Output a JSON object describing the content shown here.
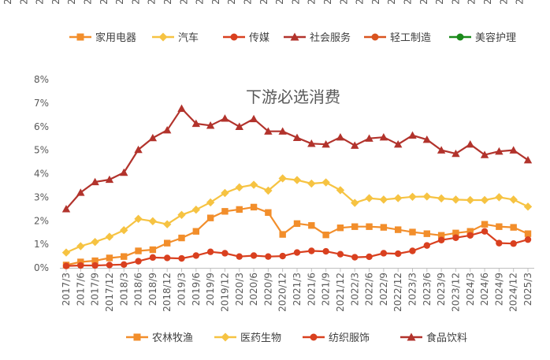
{
  "chart_data": {
    "type": "line",
    "title": "下游必选消费",
    "ylim": [
      0,
      8
    ],
    "y_ticks": [
      "0%",
      "1%",
      "2%",
      "3%",
      "4%",
      "5%",
      "6%",
      "7%",
      "8%"
    ],
    "grid": false,
    "top_legend": [
      {
        "name": "家用电器",
        "color": "#f28e2b",
        "marker": "square"
      },
      {
        "name": "汽车",
        "color": "#f6c342",
        "marker": "diamond"
      },
      {
        "name": "传媒",
        "color": "#d9401f",
        "marker": "circle"
      },
      {
        "name": "社会服务",
        "color": "#b2332c",
        "marker": "triangle"
      },
      {
        "name": "轻工制造",
        "color": "#d9541f",
        "marker": "circle"
      },
      {
        "name": "美容护理",
        "color": "#1a8a1a",
        "marker": "circle"
      }
    ],
    "top_axis_tick_fragments": [
      "2",
      "2",
      "2",
      "2",
      "2",
      "2",
      "2",
      "2",
      "2",
      "2",
      "2",
      "2",
      "2",
      "2",
      "2",
      "2",
      "2",
      "2",
      "2",
      "2",
      "2",
      "2",
      "2",
      "2",
      "2",
      "2",
      "2",
      "2",
      "2",
      "2",
      "2",
      "2",
      "2"
    ],
    "categories": [
      "2017/3",
      "2017/6",
      "2017/9",
      "2017/12",
      "2018/3",
      "2018/6",
      "2018/9",
      "2018/12",
      "2019/3",
      "2019/6",
      "2019/9",
      "2019/12",
      "2020/3",
      "2020/6",
      "2020/9",
      "2020/12",
      "2021/3",
      "2021/6",
      "2021/9",
      "2021/12",
      "2022/3",
      "2022/6",
      "2022/9",
      "2022/12",
      "2023/3",
      "2023/6",
      "2023/9",
      "2023/12",
      "2024/3",
      "2024/6",
      "2024/9",
      "2024/12",
      "2025/3"
    ],
    "series": [
      {
        "name": "农林牧渔",
        "color": "#f28e2b",
        "marker": "square",
        "values": [
          0.12,
          0.25,
          0.3,
          0.42,
          0.48,
          0.72,
          0.77,
          1.05,
          1.27,
          1.55,
          2.12,
          2.4,
          2.48,
          2.58,
          2.35,
          1.42,
          1.88,
          1.8,
          1.4,
          1.7,
          1.75,
          1.75,
          1.72,
          1.62,
          1.52,
          1.45,
          1.38,
          1.48,
          1.55,
          1.85,
          1.75,
          1.72,
          1.45
        ]
      },
      {
        "name": "医药生物",
        "color": "#f6c342",
        "marker": "diamond",
        "values": [
          0.65,
          0.92,
          1.1,
          1.32,
          1.6,
          2.08,
          1.98,
          1.85,
          2.25,
          2.47,
          2.78,
          3.18,
          3.42,
          3.53,
          3.28,
          3.8,
          3.73,
          3.58,
          3.63,
          3.3,
          2.76,
          2.96,
          2.9,
          2.96,
          3.02,
          3.03,
          2.95,
          2.9,
          2.88,
          2.88,
          3.0,
          2.9,
          2.6
        ]
      },
      {
        "name": "纺织服饰",
        "color": "#d9401f",
        "marker": "circle",
        "values": [
          0.08,
          0.1,
          0.1,
          0.12,
          0.14,
          0.28,
          0.44,
          0.42,
          0.4,
          0.52,
          0.68,
          0.62,
          0.48,
          0.52,
          0.48,
          0.5,
          0.65,
          0.72,
          0.7,
          0.58,
          0.45,
          0.47,
          0.62,
          0.6,
          0.72,
          0.95,
          1.18,
          1.28,
          1.38,
          1.55,
          1.05,
          1.03,
          1.2
        ]
      },
      {
        "name": "食品饮料",
        "color": "#b2332c",
        "marker": "triangle",
        "values": [
          2.5,
          3.2,
          3.65,
          3.75,
          4.05,
          5.02,
          5.52,
          5.85,
          6.77,
          6.13,
          6.05,
          6.35,
          6.0,
          6.33,
          5.8,
          5.8,
          5.53,
          5.28,
          5.25,
          5.55,
          5.2,
          5.5,
          5.55,
          5.25,
          5.63,
          5.45,
          5.0,
          4.85,
          5.25,
          4.8,
          4.95,
          5.0,
          4.58
        ]
      }
    ]
  }
}
